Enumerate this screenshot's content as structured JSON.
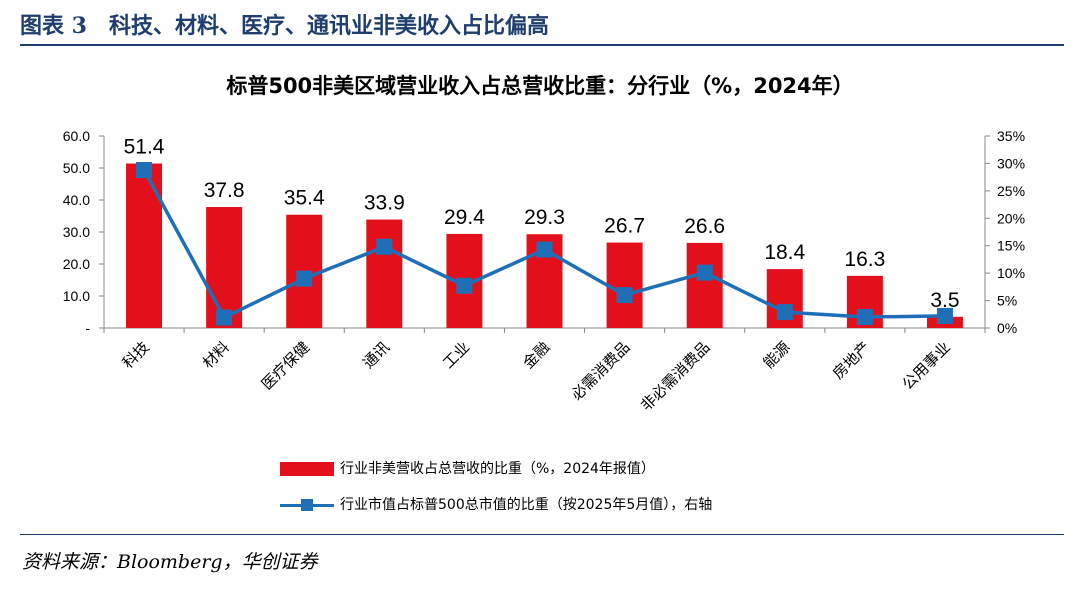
{
  "figure_title": "图表 3　科技、材料、医疗、通讯业非美收入占比偏高",
  "source": "资料来源：Bloomberg，华创证券",
  "chart_data": {
    "type": "bar",
    "title": "标普500非美区域营业收入占总营收比重：分行业（%，2024年）",
    "categories": [
      "科技",
      "材料",
      "医疗保健",
      "通讯",
      "工业",
      "金融",
      "必需消费品",
      "非必需消费品",
      "能源",
      "房地产",
      "公用事业"
    ],
    "series": [
      {
        "name": "行业非美营收占总营收的比重（%，2024年报值）",
        "type": "bar",
        "axis": "left",
        "values": [
          51.4,
          37.8,
          35.4,
          33.9,
          29.4,
          29.3,
          26.7,
          26.6,
          18.4,
          16.3,
          3.5
        ],
        "data_labels": [
          "51.4",
          "37.8",
          "35.4",
          "33.9",
          "29.4",
          "29.3",
          "26.7",
          "26.6",
          "18.4",
          "16.3",
          "3.5"
        ],
        "color": "#e3101b"
      },
      {
        "name": "行业市值占标普500总市值的比重（按2025年5月值），右轴",
        "type": "line",
        "axis": "right",
        "values": [
          28.8,
          1.9,
          9.0,
          14.8,
          7.7,
          14.3,
          6.0,
          10.1,
          2.9,
          2.0,
          2.2
        ],
        "color": "#1f6fb8"
      }
    ],
    "y_left": {
      "lim": [
        0,
        60
      ],
      "ticks": [
        "-",
        "10.0",
        "20.0",
        "30.0",
        "40.0",
        "50.0",
        "60.0"
      ]
    },
    "y_right": {
      "lim": [
        0,
        35
      ],
      "ticks": [
        "0%",
        "5%",
        "10%",
        "15%",
        "20%",
        "25%",
        "30%",
        "35%"
      ]
    },
    "grid": false,
    "legend_position": "bottom"
  }
}
